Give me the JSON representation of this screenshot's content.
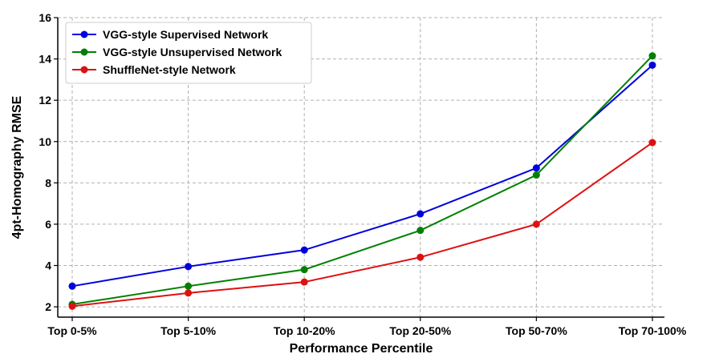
{
  "chart_data": {
    "type": "line",
    "title": "",
    "xlabel": "Performance Percentile",
    "ylabel": "4pt-Homography RMSE",
    "categories": [
      "Top 0-5%",
      "Top 5-10%",
      "Top 10-20%",
      "Top 20-50%",
      "Top 50-70%",
      "Top 70-100%"
    ],
    "ylim": [
      1.5,
      16
    ],
    "yticks": [
      2,
      4,
      6,
      8,
      10,
      12,
      14,
      16
    ],
    "grid": true,
    "legend_position": "top-left",
    "series": [
      {
        "name": "VGG-style Supervised Network",
        "color": "#0000dd",
        "values": [
          3.0,
          3.95,
          4.75,
          6.5,
          8.72,
          13.7
        ]
      },
      {
        "name": "VGG-style Unsupervised Network",
        "color": "#008000",
        "values": [
          2.12,
          3.0,
          3.8,
          5.7,
          8.38,
          14.15
        ]
      },
      {
        "name": "ShuffleNet-style Network",
        "color": "#dd1111",
        "values": [
          2.03,
          2.67,
          3.2,
          4.4,
          6.0,
          9.95
        ]
      }
    ]
  }
}
